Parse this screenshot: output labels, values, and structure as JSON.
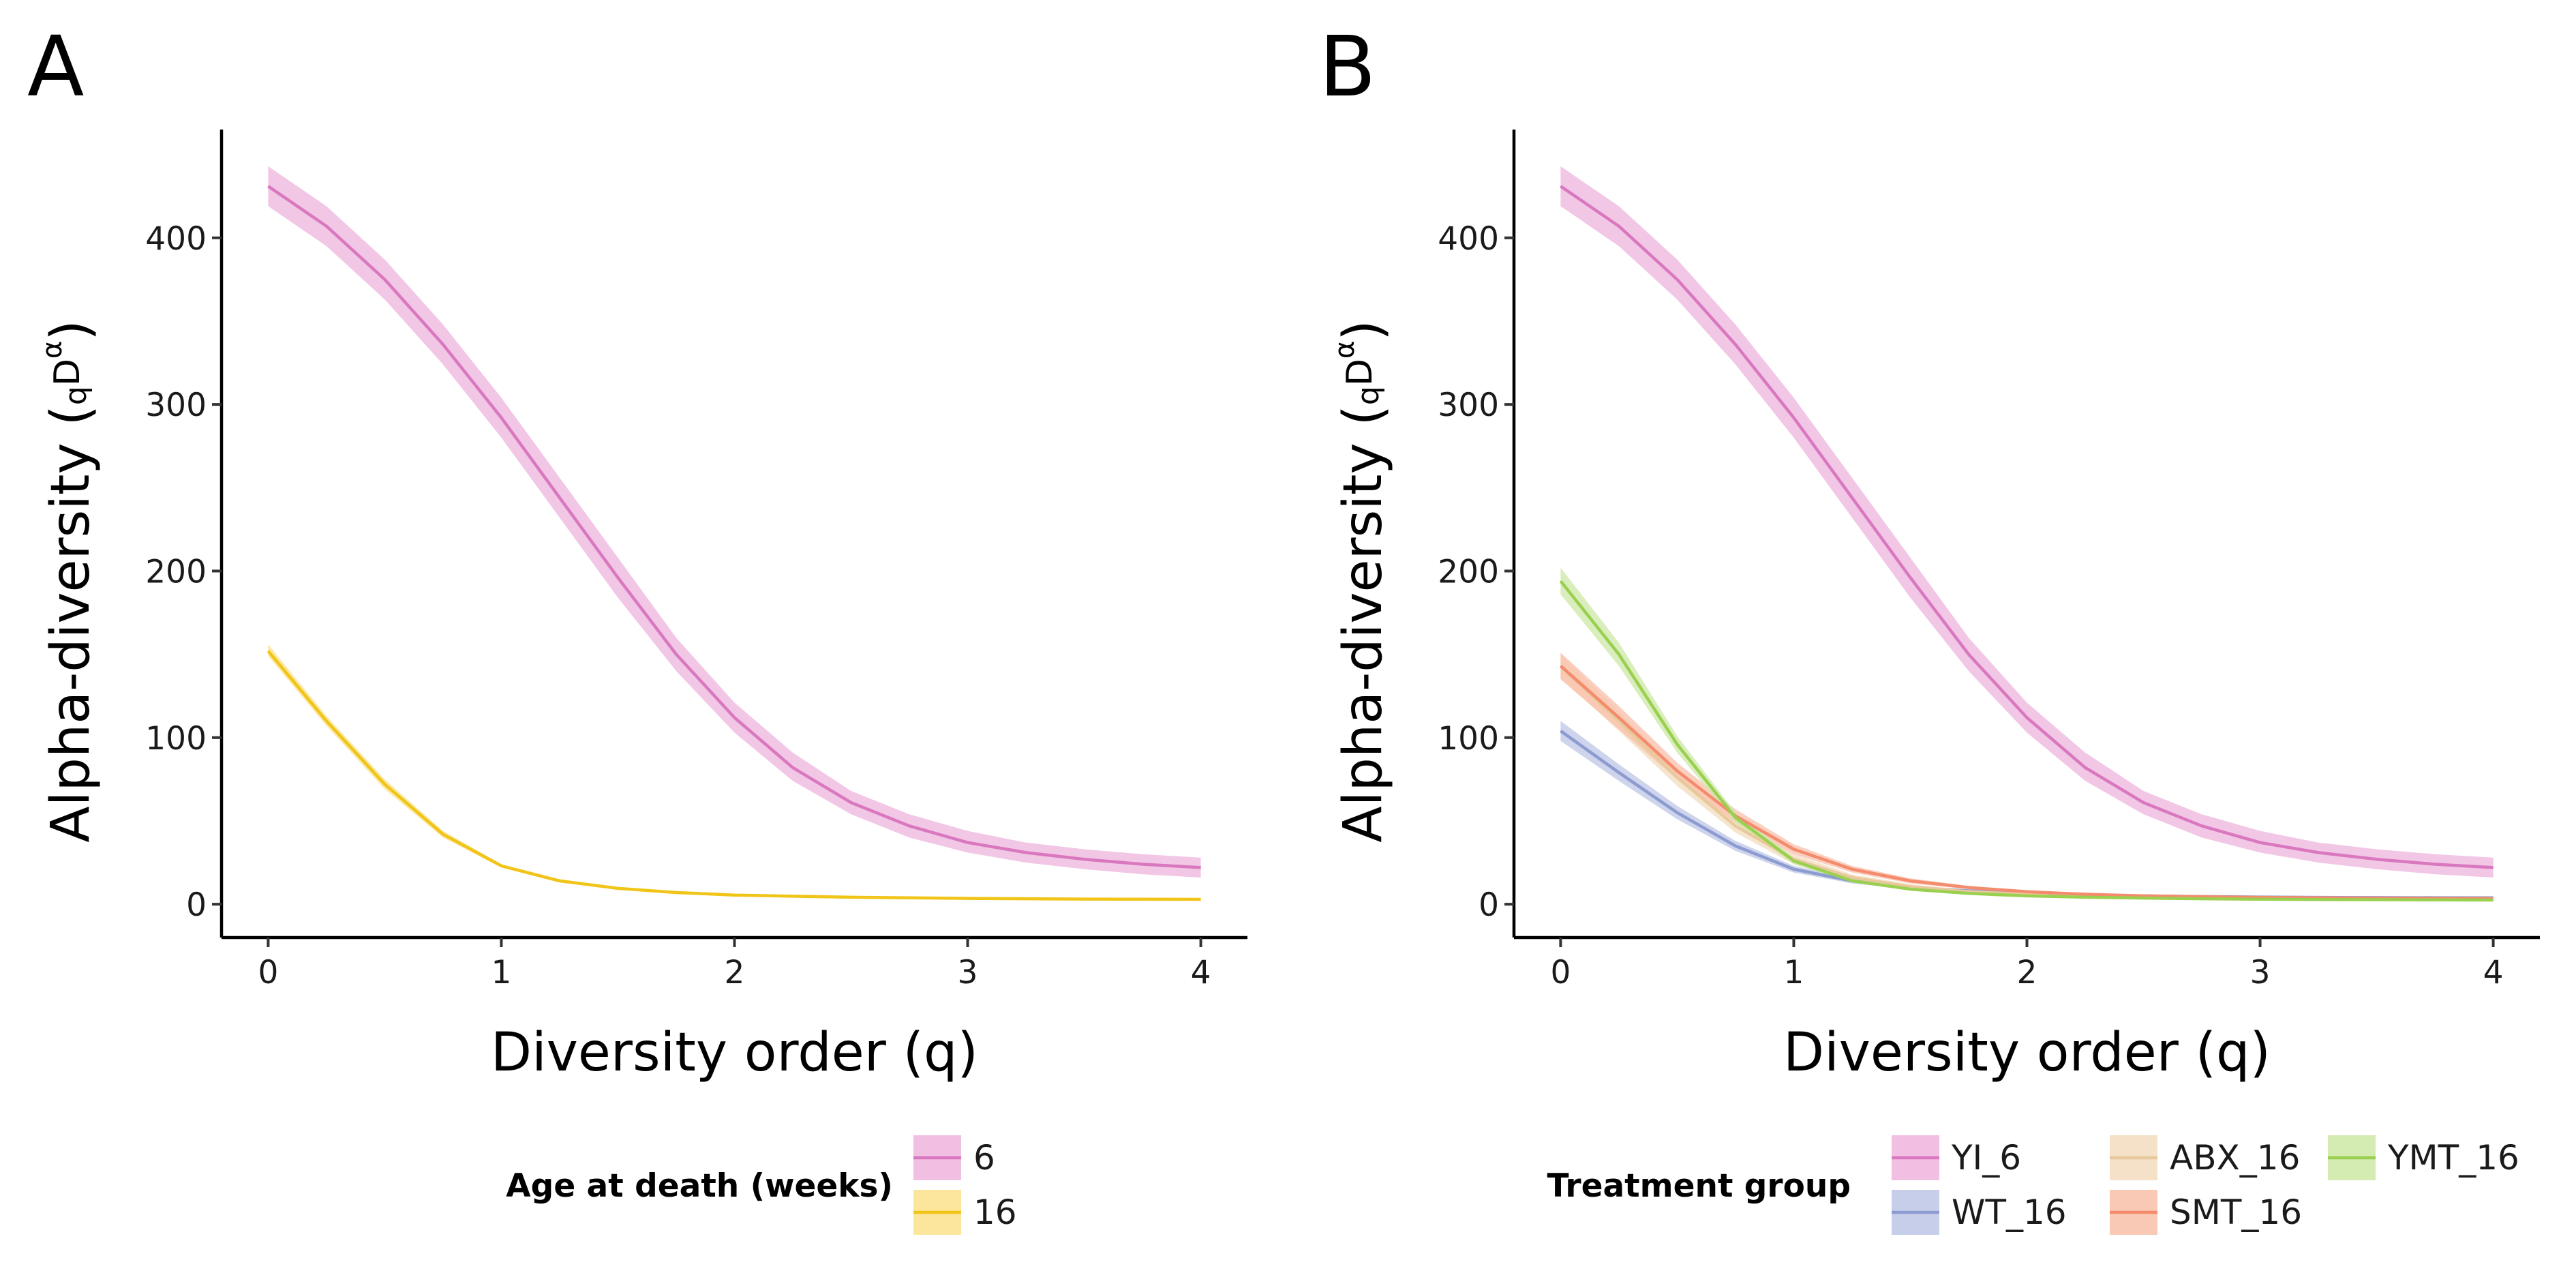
{
  "chart_data": [
    {
      "panel": "A",
      "type": "line",
      "xlabel": "Diversity order (q)",
      "ylabel_main": "Alpha-diversity (",
      "ylabel_sub": "q",
      "ylabel_base": "D",
      "ylabel_sup": "α",
      "ylabel_close": ")",
      "xlim": [
        -0.2,
        4.2
      ],
      "ylim": [
        -20,
        465
      ],
      "xticks": [
        0,
        1,
        2,
        3,
        4
      ],
      "yticks": [
        0,
        100,
        200,
        300,
        400
      ],
      "grid": false,
      "x": [
        0,
        0.25,
        0.5,
        0.75,
        1,
        1.25,
        1.5,
        1.75,
        2,
        2.25,
        2.5,
        2.75,
        3,
        3.25,
        3.5,
        3.75,
        4
      ],
      "series": [
        {
          "name": "6",
          "color": "#d977bf",
          "band_color": "#eeb4dd",
          "values": [
            431,
            407,
            375,
            336,
            292,
            244,
            196,
            150,
            112,
            82,
            61,
            47,
            37,
            31,
            27,
            24,
            22
          ],
          "lower": [
            419,
            395,
            363,
            324,
            280,
            232,
            184,
            140,
            103,
            74,
            54,
            40,
            31,
            25,
            21,
            18,
            16
          ],
          "upper": [
            443,
            419,
            387,
            348,
            304,
            256,
            208,
            160,
            121,
            91,
            68,
            54,
            44,
            37,
            33,
            30,
            28
          ]
        },
        {
          "name": "16",
          "color": "#f1c418",
          "band_color": "#fae28a",
          "values": [
            152,
            110,
            72,
            42,
            23,
            14,
            9.5,
            7,
            5.5,
            4.8,
            4.2,
            3.8,
            3.5,
            3.3,
            3.1,
            3.0,
            2.9
          ],
          "lower": [
            149,
            107,
            69,
            40,
            22,
            13,
            9,
            6.5,
            5,
            4.4,
            3.9,
            3.5,
            3.2,
            3.0,
            2.8,
            2.7,
            2.6
          ],
          "upper": [
            156,
            113,
            75,
            44,
            24,
            15,
            10,
            7.5,
            6,
            5.2,
            4.6,
            4.1,
            3.8,
            3.6,
            3.4,
            3.3,
            3.2
          ]
        }
      ],
      "legend": {
        "title": "Age at death (weeks)",
        "position": "bottom"
      }
    },
    {
      "panel": "B",
      "type": "line",
      "xlabel": "Diversity order (q)",
      "ylabel_main": "Alpha-diversity (",
      "ylabel_sub": "q",
      "ylabel_base": "D",
      "ylabel_sup": "α",
      "ylabel_close": ")",
      "xlim": [
        -0.2,
        4.2
      ],
      "ylim": [
        -20,
        465
      ],
      "xticks": [
        0,
        1,
        2,
        3,
        4
      ],
      "yticks": [
        0,
        100,
        200,
        300,
        400
      ],
      "grid": false,
      "x": [
        0,
        0.25,
        0.5,
        0.75,
        1,
        1.25,
        1.5,
        1.75,
        2,
        2.25,
        2.5,
        2.75,
        3,
        3.25,
        3.5,
        3.75,
        4
      ],
      "series": [
        {
          "name": "YI_6",
          "color": "#d977bf",
          "band_color": "#eeb4dd",
          "values": [
            431,
            407,
            375,
            336,
            292,
            244,
            196,
            150,
            112,
            82,
            61,
            47,
            37,
            31,
            27,
            24,
            22
          ],
          "lower": [
            419,
            395,
            363,
            324,
            280,
            232,
            184,
            140,
            103,
            74,
            54,
            40,
            31,
            25,
            21,
            18,
            16
          ],
          "upper": [
            443,
            419,
            387,
            348,
            304,
            256,
            208,
            160,
            121,
            91,
            68,
            54,
            44,
            37,
            33,
            30,
            28
          ]
        },
        {
          "name": "WT_16",
          "color": "#8c9bd0",
          "band_color": "#bcc5e5",
          "values": [
            104,
            79,
            55,
            35,
            21,
            14,
            10,
            8,
            6.5,
            5.5,
            5,
            4.6,
            4.3,
            4.1,
            4.0,
            3.9,
            3.8
          ],
          "lower": [
            98,
            74,
            51,
            32,
            19,
            12.5,
            9,
            7,
            5.8,
            4.9,
            4.4,
            4.0,
            3.7,
            3.5,
            3.4,
            3.3,
            3.2
          ],
          "upper": [
            110,
            84,
            59,
            38,
            23,
            15.5,
            11,
            9,
            7.2,
            6.1,
            5.6,
            5.2,
            4.9,
            4.7,
            4.6,
            4.5,
            4.4
          ]
        },
        {
          "name": "ABX_16",
          "color": "#e8c99b",
          "band_color": "#f2dcbd",
          "values": [
            143,
            110,
            76,
            47,
            27,
            16,
            10.5,
            7.5,
            6,
            5,
            4.4,
            4,
            3.7,
            3.5,
            3.3,
            3.2,
            3.1
          ],
          "lower": [
            136,
            104,
            71,
            43,
            24,
            14,
            9,
            6.5,
            5.2,
            4.4,
            3.9,
            3.5,
            3.2,
            3.0,
            2.9,
            2.8,
            2.7
          ],
          "upper": [
            150,
            116,
            81,
            51,
            30,
            18,
            12,
            8.5,
            6.8,
            5.6,
            4.9,
            4.5,
            4.2,
            4.0,
            3.8,
            3.7,
            3.6
          ]
        },
        {
          "name": "SMT_16",
          "color": "#f48b6c",
          "band_color": "#f9bfa9",
          "values": [
            143,
            112,
            80,
            53,
            33,
            21,
            14,
            10,
            7.5,
            6,
            5,
            4.5,
            4.1,
            3.8,
            3.6,
            3.5,
            3.4
          ],
          "lower": [
            135,
            105,
            75,
            49,
            30,
            19,
            12.5,
            9,
            6.7,
            5.3,
            4.5,
            4.0,
            3.6,
            3.4,
            3.2,
            3.1,
            3.0
          ],
          "upper": [
            151,
            119,
            85,
            57,
            36,
            23,
            15.5,
            11,
            8.3,
            6.7,
            5.5,
            5.0,
            4.6,
            4.3,
            4.1,
            3.9,
            3.8
          ]
        },
        {
          "name": "YMT_16",
          "color": "#9ad04f",
          "band_color": "#cce8a5",
          "values": [
            194,
            150,
            96,
            52,
            26,
            14,
            9,
            6.5,
            5,
            4.2,
            3.7,
            3.3,
            3.0,
            2.8,
            2.7,
            2.6,
            2.5
          ],
          "lower": [
            186,
            143,
            91,
            49,
            24,
            13,
            8.3,
            6.0,
            4.6,
            3.9,
            3.4,
            3.0,
            2.7,
            2.5,
            2.4,
            2.3,
            2.2
          ],
          "upper": [
            202,
            157,
            101,
            55,
            28,
            15,
            9.7,
            7.0,
            5.4,
            4.5,
            4.0,
            3.6,
            3.3,
            3.1,
            3.0,
            2.9,
            2.8
          ]
        }
      ],
      "legend": {
        "title": "Treatment group",
        "position": "bottom"
      }
    }
  ]
}
